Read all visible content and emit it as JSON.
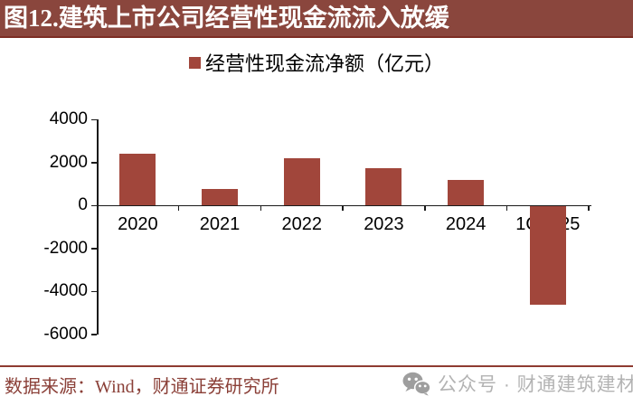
{
  "header": {
    "title": "图12.建筑上市公司经营性现金流流入放缓"
  },
  "legend": {
    "label": "经营性现金流净额（亿元）"
  },
  "chart_data": {
    "type": "bar",
    "title": "图12.建筑上市公司经营性现金流流入放缓",
    "series_name": "经营性现金流净额（亿元）",
    "categories": [
      "2020",
      "2021",
      "2022",
      "2023",
      "2024",
      "1Q2025"
    ],
    "values": [
      2420,
      790,
      2210,
      1760,
      1200,
      -4600
    ],
    "xlabel": "",
    "ylabel": "",
    "ylim": [
      -6000,
      4000
    ],
    "yticks": [
      4000,
      2000,
      0,
      -2000,
      -4000,
      -6000
    ],
    "grid": false,
    "legend_position": "top",
    "bar_color": "#A1463B"
  },
  "footer": {
    "source": "数据来源：Wind，财通证券研究所",
    "wechat_label": "公众号 · 财通建筑建材",
    "wechat_icon": "wechat-icon"
  },
  "colors": {
    "banner_bg": "#8A463D",
    "banner_underline": "#7C2D24",
    "bar": "#A1463B",
    "footer_line": "#8E3B31",
    "footer_text_red": "#8B4038",
    "gray_text": "#B3B3B3",
    "axis": "#1A1A1A"
  }
}
